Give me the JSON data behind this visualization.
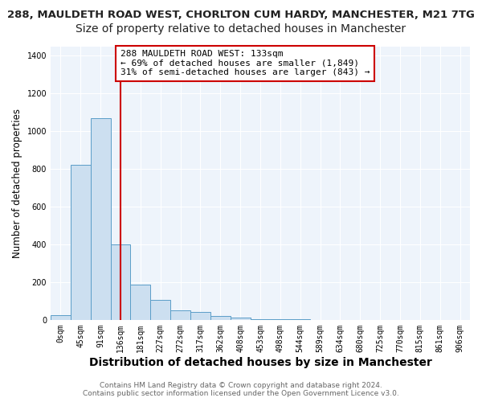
{
  "title1": "288, MAULDETH ROAD WEST, CHORLTON CUM HARDY, MANCHESTER, M21 7TG",
  "title2": "Size of property relative to detached houses in Manchester",
  "xlabel": "Distribution of detached houses by size in Manchester",
  "ylabel": "Number of detached properties",
  "bar_color": "#ccdff0",
  "bar_edge_color": "#5a9dc8",
  "vline_color": "#cc0000",
  "vline_x": 3,
  "annotation_text": "288 MAULDETH ROAD WEST: 133sqm\n← 69% of detached houses are smaller (1,849)\n31% of semi-detached houses are larger (843) →",
  "annotation_box_color": "white",
  "annotation_box_edge_color": "#cc0000",
  "footer1": "Contains HM Land Registry data © Crown copyright and database right 2024.",
  "footer2": "Contains public sector information licensed under the Open Government Licence v3.0.",
  "categories": [
    "0sqm",
    "45sqm",
    "91sqm",
    "136sqm",
    "181sqm",
    "227sqm",
    "272sqm",
    "317sqm",
    "362sqm",
    "408sqm",
    "453sqm",
    "498sqm",
    "544sqm",
    "589sqm",
    "634sqm",
    "680sqm",
    "725sqm",
    "770sqm",
    "815sqm",
    "861sqm",
    "906sqm"
  ],
  "values": [
    25,
    820,
    1070,
    400,
    185,
    105,
    50,
    40,
    20,
    10,
    5,
    2,
    2,
    0,
    0,
    0,
    0,
    0,
    0,
    0,
    0
  ],
  "ylim": [
    0,
    1450
  ],
  "yticks": [
    0,
    200,
    400,
    600,
    800,
    1000,
    1200,
    1400
  ],
  "background_color": "#ffffff",
  "plot_bg_color": "#eef4fb",
  "grid_color": "#ffffff",
  "title1_fontsize": 9.5,
  "title2_fontsize": 10,
  "xlabel_fontsize": 10,
  "ylabel_fontsize": 8.5,
  "tick_fontsize": 7,
  "annotation_fontsize": 8,
  "footer_fontsize": 6.5
}
